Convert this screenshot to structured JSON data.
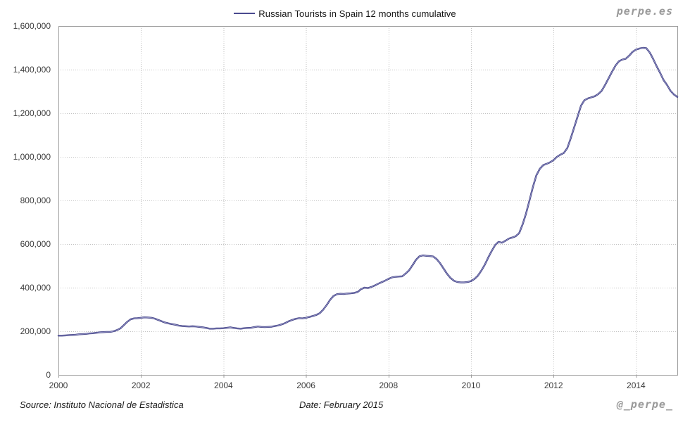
{
  "branding": {
    "site": "perpe.es",
    "twitter": "@_perpe_"
  },
  "footer": {
    "source": "Source: Instituto Nacional de Estadistica",
    "date": "Date: February 2015"
  },
  "chart_data": {
    "type": "line",
    "title": "Russian Tourists in Spain 12 months cumulative",
    "legend_position": "top-center",
    "grid": "dotted",
    "xlabel": "",
    "ylabel": "",
    "x_start": 2000,
    "x_end": 2015,
    "points_per_year": 12,
    "x_tick_years": [
      2000,
      2002,
      2004,
      2006,
      2008,
      2010,
      2012,
      2014
    ],
    "ylim": [
      0,
      1600000
    ],
    "y_tick_step": 200000,
    "line_color": "#3a3a80",
    "line_highlight": "#9c9ccb",
    "grid_color": "#c2c2c2",
    "border_color": "#9e9e9e",
    "values": [
      180000,
      180000,
      181000,
      182000,
      183000,
      184000,
      186000,
      187000,
      188000,
      190000,
      191000,
      193000,
      195000,
      196000,
      197000,
      197000,
      200000,
      205000,
      213000,
      228000,
      243000,
      255000,
      259000,
      260000,
      262000,
      264000,
      263000,
      262000,
      258000,
      252000,
      246000,
      240000,
      236000,
      233000,
      230000,
      226000,
      224000,
      223000,
      222000,
      223000,
      222000,
      220000,
      218000,
      215000,
      212000,
      212000,
      213000,
      213000,
      214000,
      216000,
      218000,
      215000,
      213000,
      212000,
      214000,
      215000,
      216000,
      219000,
      222000,
      220000,
      219000,
      220000,
      221000,
      224000,
      227000,
      232000,
      238000,
      246000,
      252000,
      257000,
      260000,
      259000,
      262000,
      266000,
      270000,
      275000,
      283000,
      299000,
      320000,
      344000,
      362000,
      370000,
      372000,
      371000,
      373000,
      374000,
      376000,
      380000,
      393000,
      400000,
      398000,
      403000,
      410000,
      418000,
      425000,
      432000,
      440000,
      447000,
      450000,
      451000,
      452000,
      465000,
      480000,
      503000,
      528000,
      544000,
      548000,
      546000,
      545000,
      543000,
      531000,
      512000,
      488000,
      464000,
      445000,
      432000,
      426000,
      424000,
      424000,
      426000,
      430000,
      440000,
      455000,
      478000,
      505000,
      538000,
      568000,
      595000,
      610000,
      606000,
      615000,
      625000,
      630000,
      636000,
      650000,
      690000,
      740000,
      800000,
      862000,
      915000,
      945000,
      962000,
      968000,
      975000,
      985000,
      1000000,
      1010000,
      1018000,
      1040000,
      1085000,
      1135000,
      1185000,
      1235000,
      1260000,
      1268000,
      1273000,
      1278000,
      1288000,
      1303000,
      1330000,
      1360000,
      1390000,
      1418000,
      1438000,
      1446000,
      1450000,
      1464000,
      1482000,
      1492000,
      1497000,
      1500000,
      1498000,
      1478000,
      1448000,
      1415000,
      1385000,
      1352000,
      1330000,
      1303000,
      1286000,
      1275000
    ]
  }
}
